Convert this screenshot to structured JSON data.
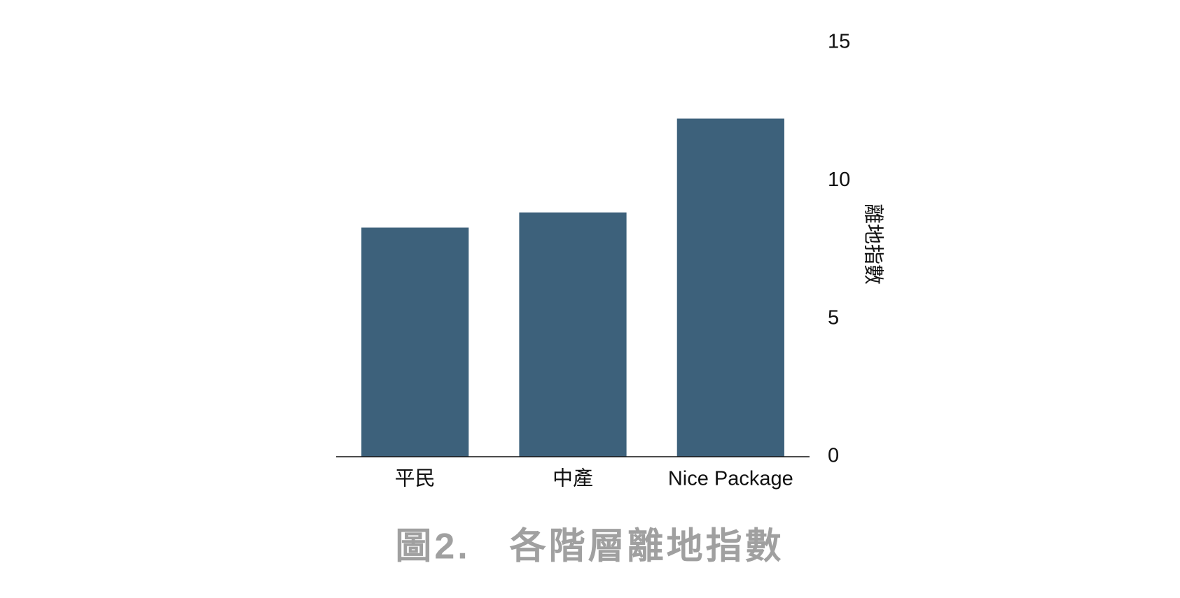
{
  "chart_data": {
    "type": "bar",
    "title": "圖2.　各階層離地指數",
    "y_label": "離地指數",
    "categories": [
      "平民",
      "中產",
      "Nice Package"
    ],
    "values": [
      8.3,
      8.85,
      12.25
    ],
    "color": "#3d617b",
    "ylim": [
      0,
      15
    ],
    "yticks": [
      0,
      5,
      10,
      15
    ],
    "grid": false
  }
}
